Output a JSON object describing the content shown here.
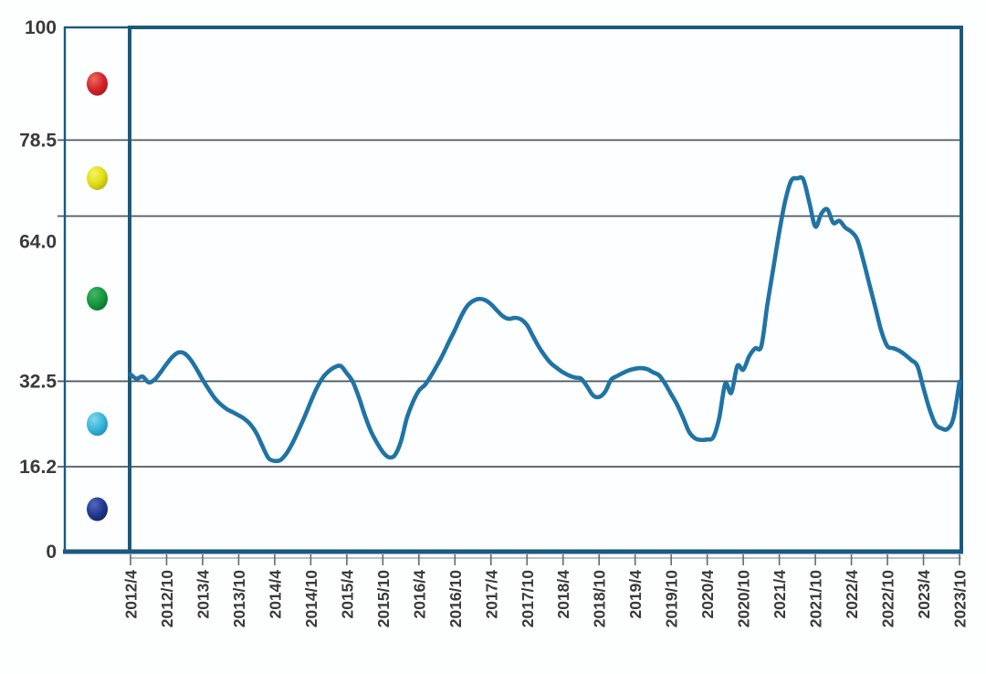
{
  "chart_data": {
    "type": "line",
    "title": "",
    "grid": true,
    "legend_position": "left-strip",
    "ylim": [
      0,
      100
    ],
    "y_tick_labels": [
      "100",
      "78.5",
      "64.0",
      "32.5",
      "16.2",
      "0"
    ],
    "y_gridline_values": [
      100,
      78.5,
      64.0,
      32.5,
      16.2,
      0
    ],
    "x_tick_labels": [
      "2012/4",
      "2012/10",
      "2013/4",
      "2013/10",
      "2014/4",
      "2014/10",
      "2015/4",
      "2015/10",
      "2016/4",
      "2016/10",
      "2017/4",
      "2017/10",
      "2018/4",
      "2018/10",
      "2019/4",
      "2019/10",
      "2020/4",
      "2020/10",
      "2021/4",
      "2021/10",
      "2022/4",
      "2022/10",
      "2023/4",
      "2023/10"
    ],
    "zone_markers": [
      {
        "name": "red-ball",
        "zone": [
          78.5,
          100
        ],
        "color": "#d2232a",
        "highlight": "#ef6a5e",
        "dark": "#9e1414"
      },
      {
        "name": "yellow-ball",
        "zone": [
          64.0,
          78.5
        ],
        "color": "#dfdc12",
        "highlight": "#f6f465",
        "dark": "#a9a70a"
      },
      {
        "name": "green-ball",
        "zone": [
          32.5,
          64.0
        ],
        "color": "#14973c",
        "highlight": "#45b469",
        "dark": "#0b6327"
      },
      {
        "name": "cyan-ball",
        "zone": [
          16.2,
          32.5
        ],
        "color": "#35b3d9",
        "highlight": "#83d7ec",
        "dark": "#1787ad"
      },
      {
        "name": "navy-ball",
        "zone": [
          0,
          16.2
        ],
        "color": "#20388f",
        "highlight": "#5568bd",
        "dark": "#131f55"
      }
    ],
    "series": [
      {
        "name": "index-line",
        "color": "#2073a5",
        "start": "2012/4",
        "interval": "1 month",
        "end": "2023/10",
        "values": [
          33.8,
          33.0,
          33.4,
          32.3,
          32.8,
          34.2,
          35.8,
          37.2,
          38.0,
          37.8,
          36.6,
          34.8,
          32.8,
          31.0,
          29.3,
          28.1,
          27.2,
          26.6,
          26.0,
          25.3,
          24.2,
          22.5,
          20.0,
          17.8,
          17.3,
          17.5,
          18.8,
          20.8,
          23.2,
          25.8,
          28.6,
          31.2,
          33.2,
          34.4,
          35.2,
          35.4,
          34.0,
          32.4,
          29.5,
          26.0,
          23.0,
          20.8,
          19.0,
          18.0,
          18.4,
          21.0,
          25.5,
          28.5,
          30.7,
          31.8,
          33.5,
          35.5,
          37.6,
          40.0,
          42.3,
          44.8,
          46.8,
          47.8,
          48.2,
          48.0,
          47.2,
          46.0,
          44.9,
          44.4,
          44.6,
          44.3,
          43.2,
          41.1,
          39.0,
          37.3,
          35.9,
          35.0,
          34.2,
          33.6,
          33.2,
          33.0,
          31.5,
          29.8,
          29.5,
          30.5,
          32.8,
          33.5,
          34.1,
          34.6,
          34.9,
          35.0,
          34.8,
          34.2,
          33.6,
          32.0,
          30.0,
          28.0,
          25.5,
          22.8,
          21.6,
          21.3,
          21.4,
          21.8,
          25.5,
          32.0,
          30.3,
          35.4,
          34.7,
          37.3,
          38.8,
          39.2,
          47.0,
          54.0,
          61.0,
          67.0,
          70.8,
          71.2,
          71.0,
          66.6,
          62.0,
          64.5,
          65.3,
          62.7,
          63.1,
          61.8,
          61.0,
          59.5,
          55.5,
          51.0,
          46.5,
          42.0,
          39.2,
          38.8,
          38.3,
          37.5,
          36.5,
          35.4,
          31.2,
          27.2,
          24.3,
          23.5,
          23.4,
          25.5,
          32.4
        ]
      }
    ],
    "layout_hints": {
      "label_y_offsets": {
        "64.0": 28
      },
      "points_per_x_tick": 6
    }
  },
  "colors": {
    "frame_border": "#1a5a7c",
    "gridline": "#4e5a62",
    "axis_line": "#949ba0",
    "tick": "#626a70",
    "tick_label": "#3a3a3a",
    "plot_background": "#fcfeff",
    "page_background": "#fdfefe"
  }
}
